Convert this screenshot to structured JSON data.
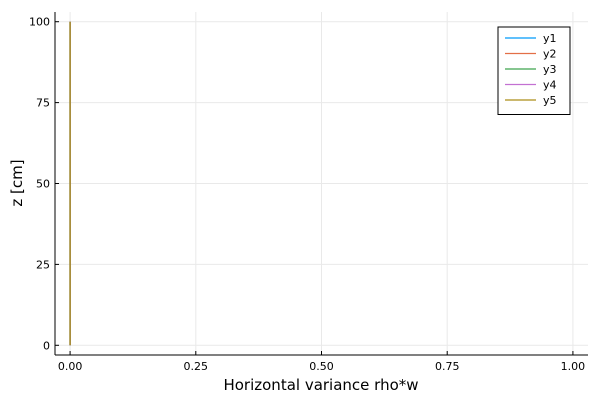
{
  "chart_data": {
    "type": "line",
    "title": "",
    "xlabel": "Horizontal variance rho*w",
    "ylabel": "z [cm]",
    "xlim": [
      -0.03,
      1.03
    ],
    "ylim": [
      -3,
      103
    ],
    "xticks": [
      {
        "value": 0,
        "label": "0.00"
      },
      {
        "value": 0.25,
        "label": "0.25"
      },
      {
        "value": 0.5,
        "label": "0.50"
      },
      {
        "value": 0.75,
        "label": "0.75"
      },
      {
        "value": 1,
        "label": "1.00"
      }
    ],
    "yticks": [
      {
        "value": 0,
        "label": "0"
      },
      {
        "value": 25,
        "label": "25"
      },
      {
        "value": 50,
        "label": "50"
      },
      {
        "value": 75,
        "label": "75"
      },
      {
        "value": 100,
        "label": "100"
      }
    ],
    "grid": true,
    "legend_position": "top-right",
    "series": [
      {
        "name": "y1",
        "color": "#009AFA",
        "x": [
          0,
          0
        ],
        "y": [
          0,
          100
        ]
      },
      {
        "name": "y2",
        "color": "#E36F47",
        "x": [
          0,
          0
        ],
        "y": [
          0,
          100
        ]
      },
      {
        "name": "y3",
        "color": "#3EA44E",
        "x": [
          0,
          0
        ],
        "y": [
          0,
          100
        ]
      },
      {
        "name": "y4",
        "color": "#C371D2",
        "x": [
          0,
          0
        ],
        "y": [
          0,
          100
        ]
      },
      {
        "name": "y5",
        "color": "#AC8E18",
        "x": [
          0,
          0
        ],
        "y": [
          0,
          100
        ]
      }
    ]
  }
}
